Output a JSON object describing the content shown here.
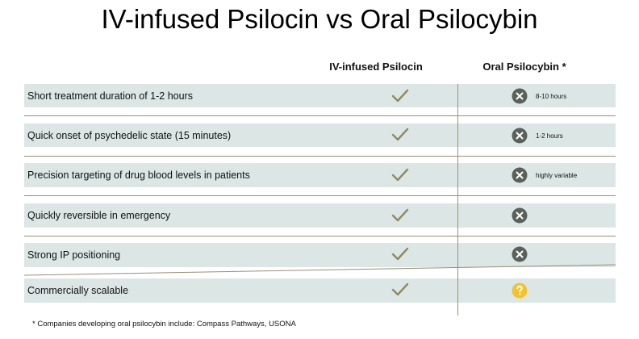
{
  "title": "IV-infused Psilocin vs Oral Psilocybin",
  "columns": {
    "iv": "IV-infused Psilocin",
    "oral": "Oral Psilocybin *"
  },
  "rows": [
    {
      "label": "Short treatment duration of 1-2 hours",
      "iv": "check-icon",
      "oral": "x-icon",
      "oral_note": "8-10 hours"
    },
    {
      "label": "Quick onset of psychedelic state (15 minutes)",
      "iv": "check-icon",
      "oral": "x-icon",
      "oral_note": "1-2 hours"
    },
    {
      "label": "Precision targeting of drug blood levels in patients",
      "iv": "check-icon",
      "oral": "x-icon",
      "oral_note": "highly variable"
    },
    {
      "label": "Quickly reversible in emergency",
      "iv": "check-icon",
      "oral": "x-icon",
      "oral_note": ""
    },
    {
      "label": "Strong IP positioning",
      "iv": "check-icon",
      "oral": "x-icon",
      "oral_note": ""
    },
    {
      "label": "Commercially scalable",
      "iv": "check-icon",
      "oral": "question-icon",
      "oral_note": ""
    }
  ],
  "footnote": "* Companies developing oral psilocybin include: Compass Pathways, USONA",
  "colors": {
    "row_background": "#dce7e5",
    "check": "#8f8a63",
    "x_circle": "#5a605c",
    "question_circle": "#f2c230",
    "divider": "#9a8f74"
  }
}
